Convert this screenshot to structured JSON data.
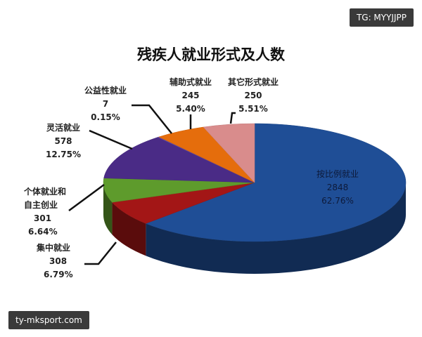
{
  "watermarks": {
    "top_right": "TG: MYYJJPP",
    "bottom_left": "ty-mksport.com"
  },
  "chart_data": {
    "type": "pie",
    "style": "3d",
    "title": "残疾人就业形式及人数",
    "start": "top, clockwise",
    "slices": [
      {
        "label": "按比例就业",
        "value": 2848,
        "percent": "62.76%",
        "color": "#1f4e96"
      },
      {
        "label": "集中就业",
        "value": 308,
        "percent": "6.79%",
        "color": "#a31616"
      },
      {
        "label": "个体就业和自主创业",
        "label_lines": [
          "个体就业和",
          "自主创业"
        ],
        "value": 301,
        "percent": "6.64%",
        "color": "#5e9b2c"
      },
      {
        "label": "灵活就业",
        "value": 578,
        "percent": "12.75%",
        "color": "#4a2b86"
      },
      {
        "label": "公益性就业",
        "value": 7,
        "percent": "0.15%",
        "color": "#6a4fa8"
      },
      {
        "label": "辅助式就业",
        "value": 245,
        "percent": "5.40%",
        "color": "#e56d0c"
      },
      {
        "label": "其它形式就业",
        "value": 250,
        "percent": "5.51%",
        "color": "#d98c8c"
      }
    ]
  }
}
